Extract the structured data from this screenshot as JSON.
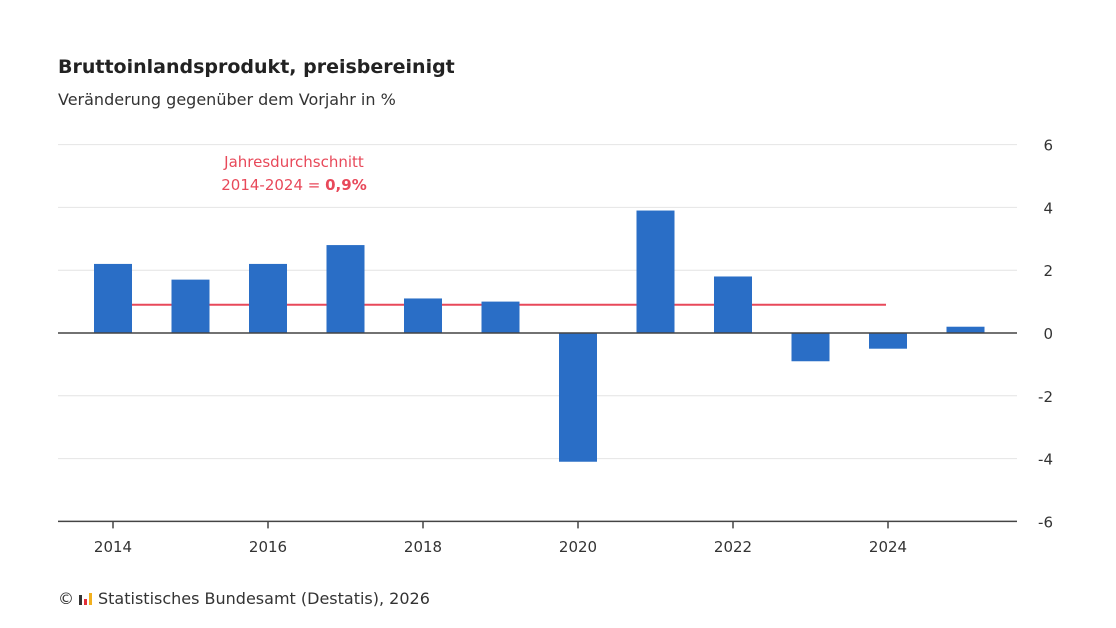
{
  "title": "Bruttoinlandsprodukt, preisbereinigt",
  "subtitle": "Veränderung gegenüber dem Vorjahr in %",
  "footer": {
    "copyright": "©",
    "source": "Statistisches Bundesamt (Destatis), 2026"
  },
  "chart_data": {
    "type": "bar",
    "categories": [
      "2014",
      "2015",
      "2016",
      "2017",
      "2018",
      "2019",
      "2020",
      "2021",
      "2022",
      "2023",
      "2024",
      "2025"
    ],
    "values": [
      2.2,
      1.7,
      2.2,
      2.8,
      1.1,
      1.0,
      -4.1,
      3.9,
      1.8,
      -0.9,
      -0.5,
      0.2
    ],
    "x_tick_labels": [
      "2014",
      "2016",
      "2018",
      "2020",
      "2022",
      "2024"
    ],
    "y_ticks": [
      6,
      4,
      2,
      0,
      -2,
      -4,
      -6
    ],
    "ylim": [
      -6,
      6
    ],
    "grid": true,
    "bar_color": "#2a6ec6",
    "average": {
      "value": 0.9,
      "from": "2014",
      "to": "2024",
      "label_line1": "Jahresdurchschnitt",
      "label_line2": "2014-2024 = ",
      "label_value": "0,9%",
      "color": "#e8495a"
    }
  }
}
